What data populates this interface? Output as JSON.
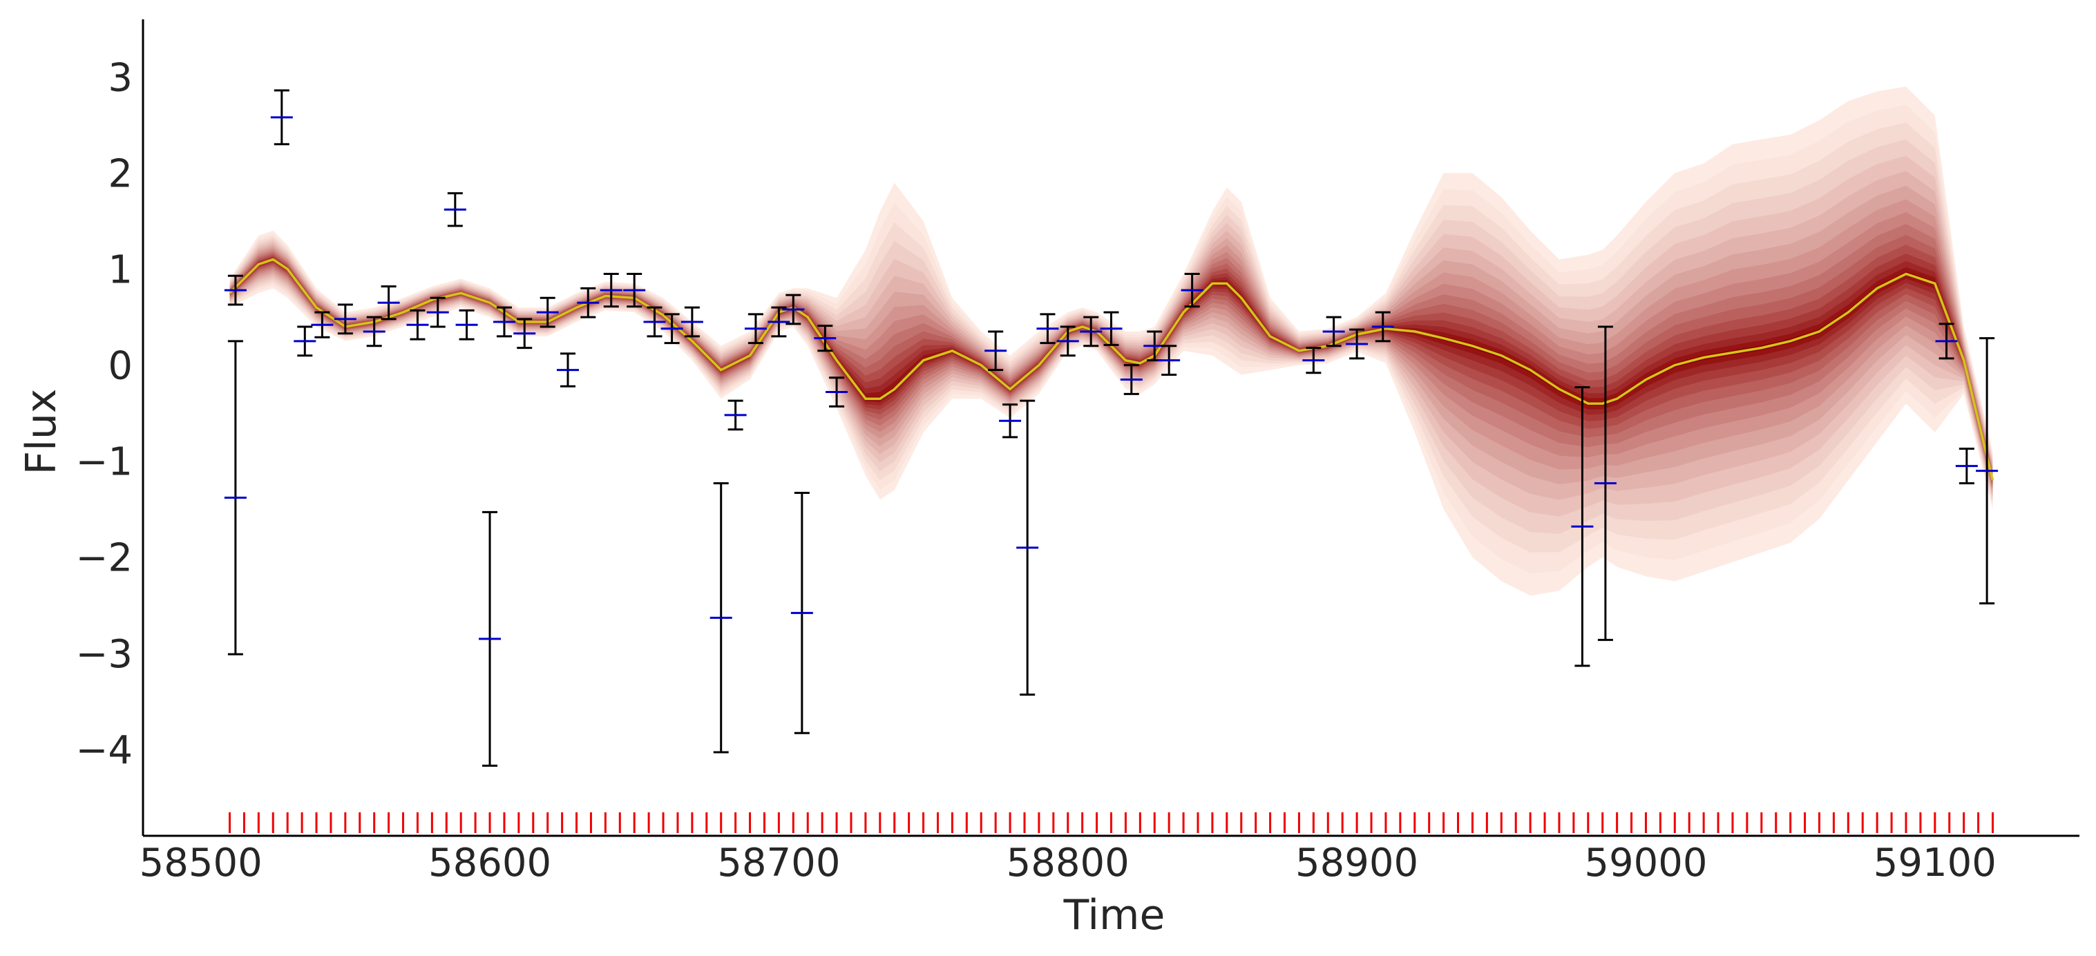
{
  "chart_data": {
    "type": "line",
    "title": "",
    "xlabel": "Time",
    "ylabel": "Flux",
    "xlim": [
      58480,
      59150
    ],
    "ylim": [
      -4.9,
      3.6
    ],
    "xticks": [
      58500,
      58600,
      58700,
      58800,
      58900,
      59000,
      59100
    ],
    "yticks": [
      -4,
      -3,
      -2,
      -1,
      0,
      1,
      2,
      3
    ],
    "grid": false,
    "colors": {
      "median": "#d4c41a",
      "band_dark": "#8b0000",
      "band_light": "#fdebe3",
      "observation_marker": "#0000cc",
      "error_bar": "#000000",
      "rug": "#ee0000",
      "axis": "#000000"
    },
    "series": [
      {
        "role": "gp_posterior",
        "x": [
          58510,
          58520,
          58525,
          58530,
          58540,
          58550,
          58560,
          58570,
          58580,
          58590,
          58600,
          58610,
          58620,
          58630,
          58640,
          58650,
          58660,
          58670,
          58680,
          58690,
          58700,
          58705,
          58710,
          58720,
          58730,
          58735,
          58740,
          58750,
          58760,
          58770,
          58780,
          58790,
          58800,
          58805,
          58810,
          58820,
          58825,
          58830,
          58840,
          58850,
          58855,
          58860,
          58870,
          58880,
          58890,
          58900,
          58910,
          58920,
          58930,
          58940,
          58950,
          58960,
          58970,
          58980,
          58985,
          58990,
          59000,
          59010,
          59020,
          59030,
          59040,
          59050,
          59060,
          59070,
          59080,
          59090,
          59100,
          59110,
          59120
        ],
        "median": [
          0.75,
          1.05,
          1.1,
          1.0,
          0.6,
          0.4,
          0.45,
          0.55,
          0.68,
          0.75,
          0.65,
          0.45,
          0.45,
          0.6,
          0.72,
          0.7,
          0.52,
          0.25,
          -0.05,
          0.1,
          0.55,
          0.6,
          0.5,
          0.05,
          -0.35,
          -0.35,
          -0.25,
          0.05,
          0.15,
          0.0,
          -0.25,
          0.0,
          0.35,
          0.4,
          0.35,
          0.05,
          0.02,
          0.1,
          0.55,
          0.85,
          0.85,
          0.7,
          0.3,
          0.15,
          0.2,
          0.32,
          0.38,
          0.35,
          0.28,
          0.2,
          0.1,
          -0.05,
          -0.25,
          -0.4,
          -0.4,
          -0.35,
          -0.15,
          0.0,
          0.08,
          0.13,
          0.18,
          0.25,
          0.35,
          0.55,
          0.8,
          0.95,
          0.85,
          0.05,
          -1.2
        ],
        "upper": [
          0.9,
          1.35,
          1.4,
          1.25,
          0.8,
          0.55,
          0.6,
          0.7,
          0.82,
          0.9,
          0.8,
          0.6,
          0.6,
          0.75,
          0.87,
          0.85,
          0.7,
          0.45,
          0.2,
          0.35,
          0.75,
          0.8,
          0.8,
          0.7,
          1.2,
          1.6,
          1.9,
          1.5,
          0.7,
          0.35,
          0.1,
          0.35,
          0.55,
          0.6,
          0.55,
          0.35,
          0.35,
          0.4,
          0.95,
          1.6,
          1.85,
          1.7,
          0.7,
          0.35,
          0.38,
          0.5,
          0.75,
          1.4,
          2.0,
          2.0,
          1.75,
          1.4,
          1.1,
          1.15,
          1.2,
          1.35,
          1.7,
          2.0,
          2.1,
          2.3,
          2.35,
          2.4,
          2.55,
          2.75,
          2.85,
          2.9,
          2.6,
          0.4,
          -0.9
        ],
        "lower": [
          0.6,
          0.75,
          0.8,
          0.7,
          0.4,
          0.25,
          0.3,
          0.4,
          0.5,
          0.6,
          0.5,
          0.3,
          0.3,
          0.45,
          0.57,
          0.55,
          0.35,
          0.05,
          -0.35,
          -0.15,
          0.35,
          0.4,
          0.2,
          -0.45,
          -1.15,
          -1.4,
          -1.3,
          -0.7,
          -0.35,
          -0.35,
          -0.55,
          -0.3,
          0.15,
          0.2,
          0.15,
          -0.25,
          -0.3,
          -0.2,
          0.15,
          0.1,
          0.0,
          -0.1,
          -0.05,
          0.0,
          0.02,
          0.14,
          0.02,
          -0.7,
          -1.5,
          -2.0,
          -2.25,
          -2.4,
          -2.35,
          -2.1,
          -2.0,
          -2.1,
          -2.2,
          -2.25,
          -2.15,
          -2.05,
          -1.95,
          -1.85,
          -1.6,
          -1.2,
          -0.8,
          -0.4,
          -0.7,
          -0.3,
          -1.5
        ]
      },
      {
        "role": "observations",
        "x": [
          58512,
          58512,
          58528,
          58536,
          58542,
          58550,
          58560,
          58565,
          58575,
          58582,
          58588,
          58592,
          58600,
          58605,
          58612,
          58620,
          58627,
          58634,
          58642,
          58650,
          58657,
          58663,
          58670,
          58680,
          58685,
          58692,
          58700,
          58705,
          58708,
          58716,
          58720,
          58775,
          58780,
          58786,
          58793,
          58800,
          58808,
          58815,
          58822,
          58830,
          58835,
          58843,
          58885,
          58892,
          58900,
          58909,
          58978,
          58986,
          59104,
          59111,
          59118
        ],
        "y": [
          0.78,
          -1.38,
          2.58,
          0.25,
          0.42,
          0.48,
          0.35,
          0.65,
          0.42,
          0.55,
          1.62,
          0.42,
          -2.85,
          0.45,
          0.33,
          0.55,
          -0.05,
          0.65,
          0.78,
          0.78,
          0.45,
          0.38,
          0.45,
          -2.63,
          -0.52,
          0.38,
          0.45,
          0.58,
          -2.58,
          0.28,
          -0.28,
          0.15,
          -0.58,
          -1.9,
          0.38,
          0.25,
          0.35,
          0.38,
          -0.15,
          0.2,
          0.05,
          0.78,
          0.05,
          0.35,
          0.22,
          0.4,
          -1.68,
          -1.23,
          0.25,
          -1.05,
          -1.1
        ],
        "yerr": [
          0.15,
          1.63,
          0.28,
          0.15,
          0.13,
          0.15,
          0.15,
          0.17,
          0.15,
          0.15,
          0.17,
          0.15,
          1.32,
          0.15,
          0.15,
          0.15,
          0.17,
          0.15,
          0.17,
          0.17,
          0.15,
          0.15,
          0.15,
          1.4,
          0.15,
          0.15,
          0.15,
          0.15,
          1.25,
          0.13,
          0.15,
          0.2,
          0.17,
          1.53,
          0.15,
          0.15,
          0.15,
          0.17,
          0.15,
          0.15,
          0.15,
          0.17,
          0.13,
          0.15,
          0.15,
          0.15,
          1.45,
          1.63,
          0.18,
          0.18,
          1.38
        ]
      }
    ],
    "rug": {
      "start": 58510,
      "end": 59120,
      "step": 5
    }
  }
}
